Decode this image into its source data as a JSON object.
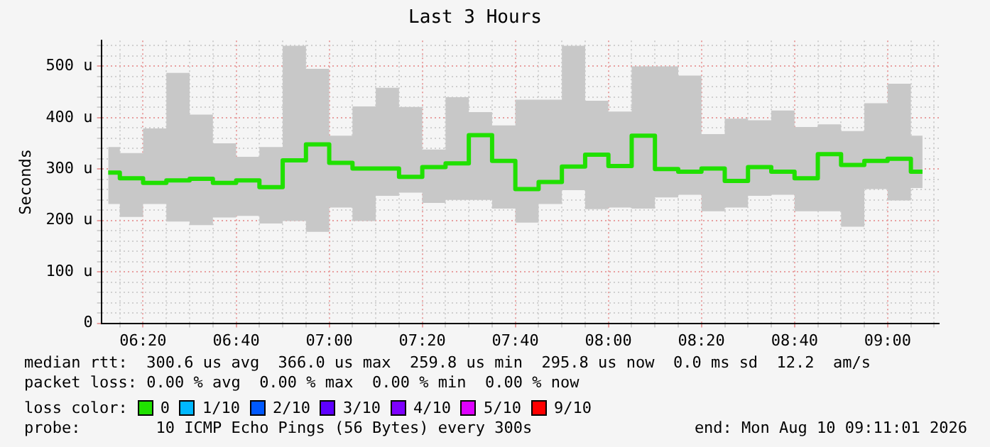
{
  "chart_data": {
    "type": "step",
    "title": "Last 3 Hours",
    "ylabel": "Seconds",
    "legend_title": "loss color:",
    "legend": "bottom",
    "grid": true,
    "marker": "none",
    "x": [
      6.2083,
      6.2917,
      6.375,
      6.4583,
      6.5417,
      6.625,
      6.7083,
      6.7917,
      6.875,
      6.9583,
      7.0417,
      7.125,
      7.2083,
      7.2917,
      7.375,
      7.4583,
      7.5417,
      7.625,
      7.7083,
      7.7917,
      7.875,
      7.9583,
      8.0417,
      8.125,
      8.2083,
      8.2917,
      8.375,
      8.4583,
      8.5417,
      8.625,
      8.7083,
      8.7917,
      8.875,
      8.9583,
      9.0417,
      9.125
    ],
    "xlim": [
      6.1836,
      9.1836
    ],
    "xticks": [
      {
        "value": 6.25,
        "label": null
      },
      {
        "value": 6.3333,
        "label": "06:20"
      },
      {
        "value": 6.4167,
        "label": null
      },
      {
        "value": 6.5,
        "label": null
      },
      {
        "value": 6.5833,
        "label": null
      },
      {
        "value": 6.6667,
        "label": "06:40"
      },
      {
        "value": 6.75,
        "label": null
      },
      {
        "value": 6.8333,
        "label": null
      },
      {
        "value": 6.9167,
        "label": null
      },
      {
        "value": 7,
        "label": "07:00"
      },
      {
        "value": 7.0833,
        "label": null
      },
      {
        "value": 7.1667,
        "label": null
      },
      {
        "value": 7.25,
        "label": null
      },
      {
        "value": 7.3333,
        "label": "07:20"
      },
      {
        "value": 7.4167,
        "label": null
      },
      {
        "value": 7.5,
        "label": null
      },
      {
        "value": 7.5833,
        "label": null
      },
      {
        "value": 7.6667,
        "label": "07:40"
      },
      {
        "value": 7.75,
        "label": null
      },
      {
        "value": 7.8333,
        "label": null
      },
      {
        "value": 7.9167,
        "label": null
      },
      {
        "value": 8,
        "label": "08:00"
      },
      {
        "value": 8.0833,
        "label": null
      },
      {
        "value": 8.1667,
        "label": null
      },
      {
        "value": 8.25,
        "label": null
      },
      {
        "value": 8.3333,
        "label": "08:20"
      },
      {
        "value": 8.4167,
        "label": null
      },
      {
        "value": 8.5,
        "label": null
      },
      {
        "value": 8.5833,
        "label": null
      },
      {
        "value": 8.6667,
        "label": "08:40"
      },
      {
        "value": 8.75,
        "label": null
      },
      {
        "value": 8.8333,
        "label": null
      },
      {
        "value": 8.9167,
        "label": null
      },
      {
        "value": 9,
        "label": "09:00"
      },
      {
        "value": 9.0833,
        "label": null
      },
      {
        "value": 9.1667,
        "label": null
      }
    ],
    "ylim": [
      0,
      550
    ],
    "yticks": [
      {
        "value": 0,
        "label": "0"
      },
      {
        "value": 20,
        "label": null
      },
      {
        "value": 40,
        "label": null
      },
      {
        "value": 60,
        "label": null
      },
      {
        "value": 80,
        "label": null
      },
      {
        "value": 100,
        "label": "100 u"
      },
      {
        "value": 120,
        "label": null
      },
      {
        "value": 140,
        "label": null
      },
      {
        "value": 160,
        "label": null
      },
      {
        "value": 180,
        "label": null
      },
      {
        "value": 200,
        "label": "200 u"
      },
      {
        "value": 220,
        "label": null
      },
      {
        "value": 240,
        "label": null
      },
      {
        "value": 260,
        "label": null
      },
      {
        "value": 280,
        "label": null
      },
      {
        "value": 300,
        "label": "300 u"
      },
      {
        "value": 320,
        "label": null
      },
      {
        "value": 340,
        "label": null
      },
      {
        "value": 360,
        "label": null
      },
      {
        "value": 380,
        "label": null
      },
      {
        "value": 400,
        "label": "400 u"
      },
      {
        "value": 420,
        "label": null
      },
      {
        "value": 440,
        "label": null
      },
      {
        "value": 460,
        "label": null
      },
      {
        "value": 480,
        "label": null
      },
      {
        "value": 500,
        "label": "500 u"
      },
      {
        "value": 520,
        "label": null
      },
      {
        "value": 540,
        "label": null
      }
    ],
    "series": [
      {
        "name": "0",
        "color": "#20e000",
        "values": [
          293,
          282,
          273,
          278,
          281,
          273,
          278,
          265,
          317,
          348,
          312,
          301,
          301,
          285,
          304,
          311,
          366,
          316,
          261,
          275,
          305,
          328,
          306,
          365,
          300,
          295,
          301,
          277,
          304,
          295,
          282,
          329,
          308,
          316,
          320,
          295
        ],
        "lower": [
          232,
          207,
          232,
          198,
          191,
          206,
          209,
          194,
          199,
          178,
          225,
          199,
          248,
          254,
          234,
          240,
          240,
          223,
          196,
          232,
          259,
          222,
          225,
          223,
          245,
          250,
          218,
          225,
          248,
          250,
          218,
          218,
          188,
          261,
          239,
          263
        ],
        "upper": [
          343,
          331,
          379,
          487,
          406,
          350,
          324,
          343,
          540,
          495,
          365,
          422,
          458,
          421,
          338,
          440,
          411,
          385,
          435,
          435,
          540,
          433,
          412,
          500,
          500,
          482,
          368,
          398,
          395,
          414,
          382,
          387,
          374,
          428,
          466,
          365
        ]
      },
      {
        "name": "1/10",
        "color": "#00b8ff",
        "values": [
          null,
          null,
          null,
          null,
          null,
          null,
          null,
          null,
          null,
          null,
          null,
          null,
          null,
          null,
          null,
          null,
          null,
          null,
          null,
          null,
          null,
          null,
          null,
          null,
          null,
          null,
          null,
          null,
          null,
          null,
          null,
          null,
          null,
          null,
          null,
          null
        ]
      },
      {
        "name": "2/10",
        "color": "#0059ff",
        "values": [
          null,
          null,
          null,
          null,
          null,
          null,
          null,
          null,
          null,
          null,
          null,
          null,
          null,
          null,
          null,
          null,
          null,
          null,
          null,
          null,
          null,
          null,
          null,
          null,
          null,
          null,
          null,
          null,
          null,
          null,
          null,
          null,
          null,
          null,
          null,
          null
        ]
      },
      {
        "name": "3/10",
        "color": "#5e00ff",
        "values": [
          null,
          null,
          null,
          null,
          null,
          null,
          null,
          null,
          null,
          null,
          null,
          null,
          null,
          null,
          null,
          null,
          null,
          null,
          null,
          null,
          null,
          null,
          null,
          null,
          null,
          null,
          null,
          null,
          null,
          null,
          null,
          null,
          null,
          null,
          null,
          null
        ]
      },
      {
        "name": "4/10",
        "color": "#7e00ff",
        "values": [
          null,
          null,
          null,
          null,
          null,
          null,
          null,
          null,
          null,
          null,
          null,
          null,
          null,
          null,
          null,
          null,
          null,
          null,
          null,
          null,
          null,
          null,
          null,
          null,
          null,
          null,
          null,
          null,
          null,
          null,
          null,
          null,
          null,
          null,
          null,
          null
        ]
      },
      {
        "name": "5/10",
        "color": "#dd00ff",
        "values": [
          null,
          null,
          null,
          null,
          null,
          null,
          null,
          null,
          null,
          null,
          null,
          null,
          null,
          null,
          null,
          null,
          null,
          null,
          null,
          null,
          null,
          null,
          null,
          null,
          null,
          null,
          null,
          null,
          null,
          null,
          null,
          null,
          null,
          null,
          null,
          null
        ]
      },
      {
        "name": "9/10",
        "color": "#ff0000",
        "values": [
          null,
          null,
          null,
          null,
          null,
          null,
          null,
          null,
          null,
          null,
          null,
          null,
          null,
          null,
          null,
          null,
          null,
          null,
          null,
          null,
          null,
          null,
          null,
          null,
          null,
          null,
          null,
          null,
          null,
          null,
          null,
          null,
          null,
          null,
          null,
          null
        ]
      }
    ],
    "annotations": [
      "median rtt:  300.6 us avg  366.0 us max  259.8 us min  295.8 us now  0.0 ms sd  12.2  am/s",
      "packet loss: 0.00 % avg  0.00 % max  0.00 % min  0.00 % now",
      "probe:        10 ICMP Echo Pings (56 Bytes) every 300s",
      "end: Mon Aug 10 09:11:01 2026"
    ]
  }
}
